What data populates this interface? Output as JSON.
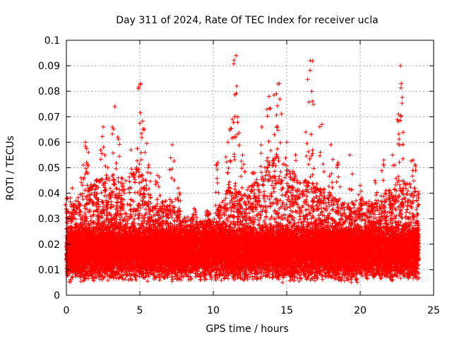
{
  "chart_data": {
    "type": "scatter",
    "title": "Day 311 of 2024, Rate Of TEC Index for receiver ucla",
    "xlabel": "GPS time / hours",
    "ylabel": "ROTI / TECUs",
    "xlim": [
      0,
      25
    ],
    "ylim": [
      0,
      0.1
    ],
    "x_ticks": [
      0,
      5,
      10,
      15,
      20,
      25
    ],
    "x_tick_labels": [
      "0",
      "5",
      "10",
      "15",
      "20",
      "25"
    ],
    "y_ticks": [
      0,
      0.01,
      0.02,
      0.03,
      0.04,
      0.05,
      0.06,
      0.07,
      0.08,
      0.09,
      0.1
    ],
    "y_tick_labels": [
      "0",
      "0.01",
      "0.02",
      "0.03",
      "0.04",
      "0.05",
      "0.06",
      "0.07",
      "0.08",
      "0.09",
      "0.1"
    ],
    "grid": true,
    "marker": "+",
    "color": "#ff0000",
    "data_extent_hours": [
      0,
      24
    ],
    "typical_band": [
      0.005,
      0.03
    ],
    "peaks": [
      {
        "x": 0.05,
        "y": 0.038
      },
      {
        "x": 0.4,
        "y": 0.042
      },
      {
        "x": 1.0,
        "y": 0.046
      },
      {
        "x": 1.3,
        "y": 0.06
      },
      {
        "x": 1.5,
        "y": 0.056
      },
      {
        "x": 2.0,
        "y": 0.043
      },
      {
        "x": 2.5,
        "y": 0.066
      },
      {
        "x": 2.8,
        "y": 0.05
      },
      {
        "x": 3.3,
        "y": 0.074
      },
      {
        "x": 3.5,
        "y": 0.062
      },
      {
        "x": 4.4,
        "y": 0.057
      },
      {
        "x": 4.9,
        "y": 0.081
      },
      {
        "x": 5.05,
        "y": 0.083
      },
      {
        "x": 5.3,
        "y": 0.065
      },
      {
        "x": 5.6,
        "y": 0.051
      },
      {
        "x": 6.2,
        "y": 0.047
      },
      {
        "x": 7.2,
        "y": 0.059
      },
      {
        "x": 7.6,
        "y": 0.042
      },
      {
        "x": 8.7,
        "y": 0.034
      },
      {
        "x": 9.6,
        "y": 0.033
      },
      {
        "x": 10.3,
        "y": 0.052
      },
      {
        "x": 11.0,
        "y": 0.06
      },
      {
        "x": 11.3,
        "y": 0.069
      },
      {
        "x": 11.55,
        "y": 0.094
      },
      {
        "x": 11.6,
        "y": 0.082
      },
      {
        "x": 12.0,
        "y": 0.055
      },
      {
        "x": 12.8,
        "y": 0.048
      },
      {
        "x": 13.3,
        "y": 0.066
      },
      {
        "x": 13.8,
        "y": 0.078
      },
      {
        "x": 14.3,
        "y": 0.079
      },
      {
        "x": 14.5,
        "y": 0.083
      },
      {
        "x": 15.0,
        "y": 0.06
      },
      {
        "x": 15.6,
        "y": 0.055
      },
      {
        "x": 16.3,
        "y": 0.064
      },
      {
        "x": 16.6,
        "y": 0.092
      },
      {
        "x": 16.7,
        "y": 0.08
      },
      {
        "x": 17.4,
        "y": 0.067
      },
      {
        "x": 18.0,
        "y": 0.059
      },
      {
        "x": 18.5,
        "y": 0.052
      },
      {
        "x": 19.3,
        "y": 0.055
      },
      {
        "x": 20.0,
        "y": 0.043
      },
      {
        "x": 21.0,
        "y": 0.045
      },
      {
        "x": 21.6,
        "y": 0.053
      },
      {
        "x": 22.2,
        "y": 0.055
      },
      {
        "x": 22.6,
        "y": 0.071
      },
      {
        "x": 22.75,
        "y": 0.09
      },
      {
        "x": 22.8,
        "y": 0.083
      },
      {
        "x": 23.6,
        "y": 0.053
      }
    ],
    "activity_envelope": [
      {
        "x": 0,
        "y": 0.034
      },
      {
        "x": 1,
        "y": 0.04
      },
      {
        "x": 2,
        "y": 0.046
      },
      {
        "x": 3,
        "y": 0.048
      },
      {
        "x": 4,
        "y": 0.046
      },
      {
        "x": 5,
        "y": 0.052
      },
      {
        "x": 6,
        "y": 0.035
      },
      {
        "x": 7,
        "y": 0.038
      },
      {
        "x": 8,
        "y": 0.032
      },
      {
        "x": 9,
        "y": 0.029
      },
      {
        "x": 10,
        "y": 0.03
      },
      {
        "x": 11,
        "y": 0.043
      },
      {
        "x": 12,
        "y": 0.04
      },
      {
        "x": 13,
        "y": 0.046
      },
      {
        "x": 14,
        "y": 0.058
      },
      {
        "x": 15,
        "y": 0.05
      },
      {
        "x": 16,
        "y": 0.046
      },
      {
        "x": 17,
        "y": 0.044
      },
      {
        "x": 18,
        "y": 0.04
      },
      {
        "x": 19,
        "y": 0.036
      },
      {
        "x": 20,
        "y": 0.038
      },
      {
        "x": 21,
        "y": 0.036
      },
      {
        "x": 22,
        "y": 0.042
      },
      {
        "x": 23,
        "y": 0.046
      },
      {
        "x": 24,
        "y": 0.042
      }
    ]
  }
}
